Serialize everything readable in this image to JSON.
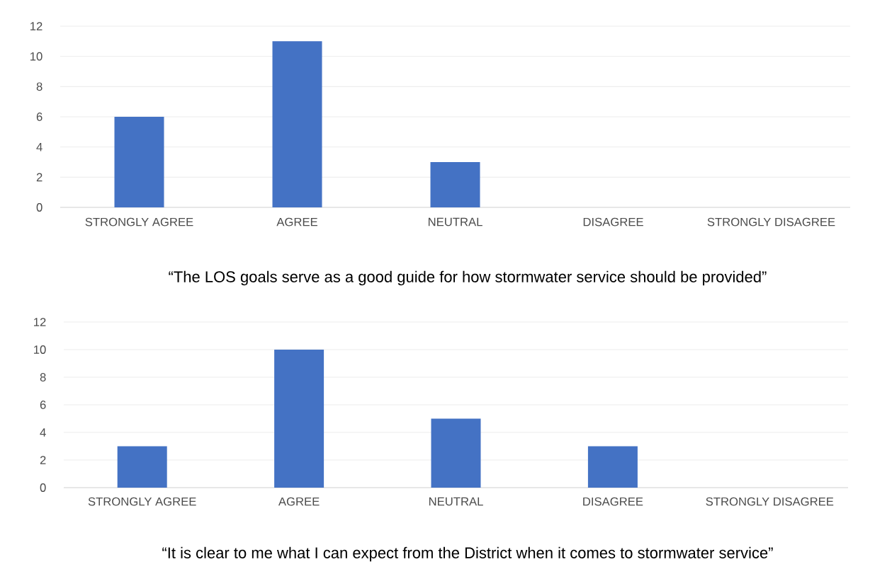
{
  "chart_data": [
    {
      "type": "bar",
      "title": "“The LOS goals serve as a good guide for how stormwater service should be provided”",
      "categories": [
        "STRONGLY AGREE",
        "AGREE",
        "NEUTRAL",
        "DISAGREE",
        "STRONGLY DISAGREE"
      ],
      "values": [
        6,
        11,
        3,
        0,
        0
      ],
      "color": "#4472c4",
      "ylim": [
        0,
        12
      ],
      "yticks": [
        0,
        2,
        4,
        6,
        8,
        10,
        12
      ],
      "grid": "y"
    },
    {
      "type": "bar",
      "title": "“It is clear to me what I can expect from the District when it comes to stormwater service”",
      "categories": [
        "STRONGLY AGREE",
        "AGREE",
        "NEUTRAL",
        "DISAGREE",
        "STRONGLY DISAGREE"
      ],
      "values": [
        3,
        10,
        5,
        3,
        0
      ],
      "color": "#4472c4",
      "ylim": [
        0,
        12
      ],
      "yticks": [
        0,
        2,
        4,
        6,
        8,
        10,
        12
      ],
      "grid": "y"
    }
  ]
}
